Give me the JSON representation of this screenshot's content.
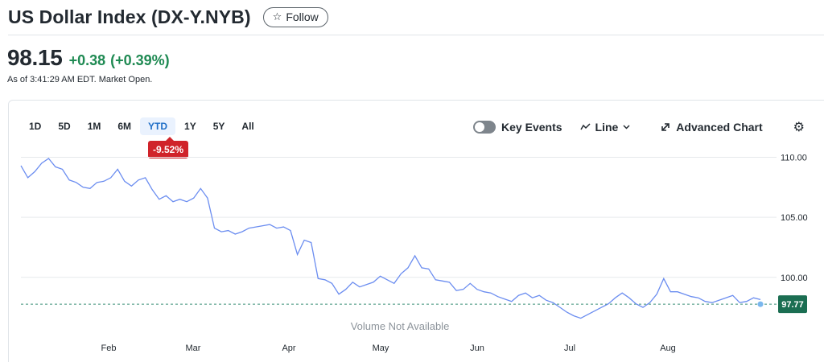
{
  "header": {
    "title": "US Dollar Index (DX-Y.NYB)",
    "follow_icon": "star-icon",
    "follow_label": "Follow"
  },
  "quote": {
    "price": "98.15",
    "change": "+0.38",
    "change_pct": "(+0.39%)",
    "as_of": "As of 3:41:29 AM EDT. Market Open.",
    "positive_color": "#1f8a53"
  },
  "toolbar": {
    "ranges": [
      "1D",
      "5D",
      "1M",
      "6M",
      "YTD",
      "1Y",
      "5Y",
      "All"
    ],
    "active_range": "YTD",
    "performance": "-9.52%",
    "performance_color": "#d0232a",
    "key_events_label": "Key Events",
    "line_label": "Line",
    "advanced_chart_label": "Advanced Chart",
    "settings_icon": "gear-icon"
  },
  "chart_data": {
    "type": "line",
    "title": "",
    "x_ticks": [
      "Feb",
      "Mar",
      "Apr",
      "May",
      "Jun",
      "Jul",
      "Aug"
    ],
    "y_ticks": [
      "110.00",
      "105.00",
      "100.00"
    ],
    "ylim": [
      95.5,
      110.5
    ],
    "current_value_label": "97.77",
    "current_value": 97.77,
    "volume_note": "Volume Not Available",
    "line_color": "#6b8df0",
    "series": [
      {
        "values": [
          109.3,
          108.3,
          108.8,
          109.5,
          109.9,
          109.2,
          109.0,
          108.1,
          107.9,
          107.5,
          107.4,
          107.9,
          108.0,
          108.3,
          109.0,
          108.0,
          107.6,
          108.1,
          108.3,
          107.3,
          106.5,
          106.8,
          106.3,
          106.5,
          106.3,
          106.6,
          107.4,
          106.6,
          104.1,
          103.8,
          103.9,
          103.6,
          103.8,
          104.1,
          104.2,
          104.3,
          104.4,
          104.1,
          104.2,
          103.9,
          101.9,
          103.1,
          102.9,
          99.9,
          99.8,
          99.5,
          98.6,
          99.0,
          99.6,
          99.2,
          99.4,
          99.6,
          100.1,
          99.8,
          99.5,
          100.3,
          100.8,
          101.8,
          100.8,
          100.7,
          99.8,
          99.7,
          99.6,
          98.9,
          99.0,
          99.5,
          99.0,
          98.8,
          98.7,
          98.4,
          98.2,
          98.0,
          98.5,
          98.7,
          98.3,
          98.5,
          98.1,
          97.9,
          97.5,
          97.1,
          96.8,
          96.6,
          96.9,
          97.2,
          97.5,
          97.8,
          98.3,
          98.7,
          98.3,
          97.8,
          97.5,
          97.9,
          98.6,
          99.9,
          98.8,
          98.8,
          98.6,
          98.4,
          98.3,
          98.0,
          97.9,
          98.1,
          98.3,
          98.5,
          97.9,
          98.0,
          98.3,
          98.15
        ]
      }
    ]
  }
}
